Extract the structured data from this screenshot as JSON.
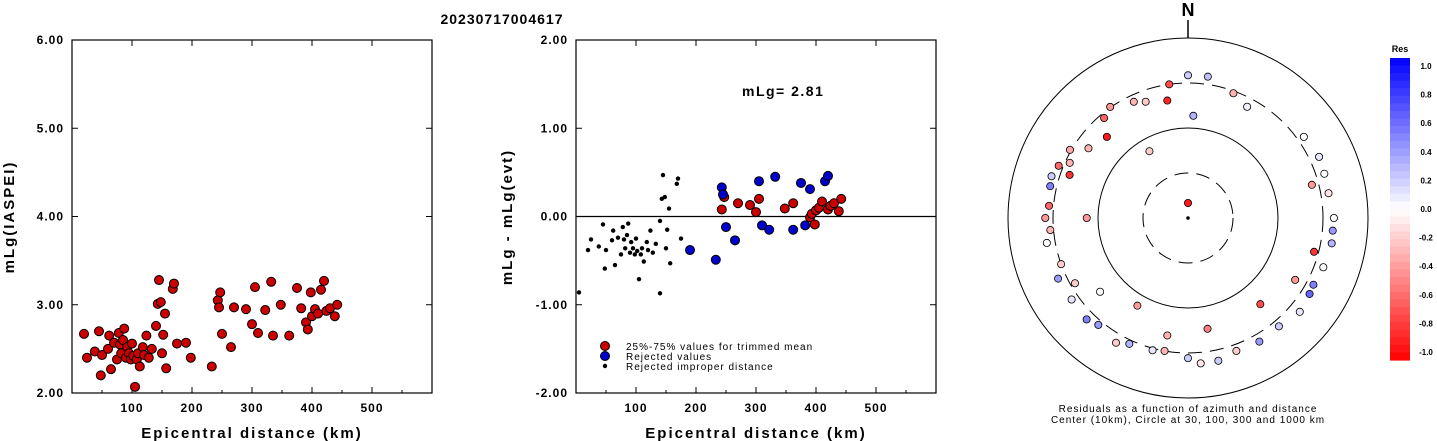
{
  "chart_data": [
    {
      "type": "scatter",
      "title": "20230717004617",
      "xlabel": "Epicentral distance (km)",
      "ylabel": "mLg(IASPEI)",
      "xlim": [
        0,
        600
      ],
      "ylim": [
        2.0,
        6.0
      ],
      "xticks": [
        "100",
        "200",
        "300",
        "400",
        "500"
      ],
      "yticks": [
        "2.00",
        "3.00",
        "4.00",
        "5.00",
        "6.00"
      ],
      "series": [
        {
          "color": "#cc0000",
          "points": [
            [
              20,
              2.67
            ],
            [
              25,
              2.4
            ],
            [
              38,
              2.47
            ],
            [
              45,
              2.7
            ],
            [
              48,
              2.2
            ],
            [
              50,
              2.43
            ],
            [
              60,
              2.5
            ],
            [
              62,
              2.65
            ],
            [
              65,
              2.27
            ],
            [
              70,
              2.57
            ],
            [
              75,
              2.38
            ],
            [
              78,
              2.68
            ],
            [
              80,
              2.55
            ],
            [
              82,
              2.45
            ],
            [
              85,
              2.6
            ],
            [
              87,
              2.73
            ],
            [
              90,
              2.4
            ],
            [
              92,
              2.52
            ],
            [
              95,
              2.45
            ],
            [
              98,
              2.38
            ],
            [
              100,
              2.56
            ],
            [
              102,
              2.42
            ],
            [
              105,
              2.07
            ],
            [
              108,
              2.38
            ],
            [
              110,
              2.45
            ],
            [
              113,
              2.3
            ],
            [
              118,
              2.52
            ],
            [
              120,
              2.43
            ],
            [
              124,
              2.65
            ],
            [
              128,
              2.4
            ],
            [
              133,
              2.5
            ],
            [
              140,
              2.76
            ],
            [
              143,
              3.01
            ],
            [
              145,
              3.28
            ],
            [
              148,
              3.03
            ],
            [
              150,
              2.45
            ],
            [
              152,
              2.66
            ],
            [
              155,
              2.9
            ],
            [
              157,
              2.28
            ],
            [
              168,
              3.18
            ],
            [
              170,
              3.24
            ],
            [
              175,
              2.56
            ],
            [
              190,
              2.57
            ],
            [
              198,
              2.4
            ],
            [
              233,
              2.3
            ],
            [
              243,
              3.05
            ],
            [
              245,
              2.97
            ],
            [
              247,
              3.14
            ],
            [
              250,
              2.67
            ],
            [
              265,
              2.52
            ],
            [
              270,
              2.97
            ],
            [
              290,
              2.95
            ],
            [
              300,
              2.78
            ],
            [
              305,
              3.2
            ],
            [
              310,
              2.68
            ],
            [
              322,
              2.94
            ],
            [
              332,
              3.26
            ],
            [
              335,
              2.65
            ],
            [
              348,
              3.0
            ],
            [
              362,
              2.65
            ],
            [
              375,
              3.19
            ],
            [
              382,
              2.96
            ],
            [
              390,
              2.8
            ],
            [
              393,
              2.72
            ],
            [
              398,
              3.14
            ],
            [
              400,
              2.87
            ],
            [
              405,
              2.95
            ],
            [
              410,
              2.9
            ],
            [
              415,
              3.17
            ],
            [
              420,
              3.27
            ],
            [
              424,
              2.93
            ],
            [
              430,
              2.96
            ],
            [
              438,
              2.87
            ],
            [
              442,
              3.0
            ]
          ]
        }
      ]
    },
    {
      "type": "scatter",
      "xlabel": "Epicentral distance (km)",
      "ylabel": "mLg - mLg(evt)",
      "xlim": [
        0,
        600
      ],
      "ylim": [
        -2.0,
        2.0
      ],
      "xticks": [
        "100",
        "200",
        "300",
        "400",
        "500"
      ],
      "yticks": [
        "-2.00",
        "-1.00",
        "0.00",
        "1.00",
        "2.00"
      ],
      "annotation": "mLg= 2.81",
      "legend": [
        {
          "label": "25%-75% values for trimmed mean",
          "color": "#cc0000"
        },
        {
          "label": "Rejected values",
          "color": "#0000cc"
        },
        {
          "label": "Rejected improper distance",
          "color": "#000000"
        }
      ],
      "series": [
        {
          "name": "25%-75% values for trimmed mean",
          "color": "#cc0000",
          "points": [
            [
              243,
              0.08
            ],
            [
              247,
              0.22
            ],
            [
              270,
              0.15
            ],
            [
              290,
              0.13
            ],
            [
              300,
              0.05
            ],
            [
              305,
              0.2
            ],
            [
              348,
              0.09
            ],
            [
              362,
              0.15
            ],
            [
              390,
              -0.01
            ],
            [
              393,
              0.03
            ],
            [
              398,
              -0.09
            ],
            [
              400,
              0.07
            ],
            [
              405,
              0.1
            ],
            [
              410,
              0.17
            ],
            [
              420,
              0.08
            ],
            [
              424,
              0.12
            ],
            [
              430,
              0.15
            ],
            [
              438,
              0.06
            ],
            [
              442,
              0.2
            ]
          ]
        },
        {
          "name": "Rejected values",
          "color": "#0000cc",
          "points": [
            [
              190,
              -0.38
            ],
            [
              233,
              -0.49
            ],
            [
              243,
              0.33
            ],
            [
              245,
              0.25
            ],
            [
              250,
              -0.12
            ],
            [
              265,
              -0.27
            ],
            [
              305,
              0.4
            ],
            [
              310,
              -0.1
            ],
            [
              322,
              -0.15
            ],
            [
              332,
              0.45
            ],
            [
              362,
              -0.15
            ],
            [
              375,
              0.38
            ],
            [
              382,
              -0.1
            ],
            [
              390,
              0.31
            ],
            [
              415,
              0.4
            ],
            [
              420,
              0.46
            ]
          ]
        },
        {
          "name": "Rejected improper distance",
          "color": "#000000",
          "points": [
            [
              5,
              -0.86
            ],
            [
              20,
              -0.38
            ],
            [
              25,
              -0.26
            ],
            [
              38,
              -0.34
            ],
            [
              45,
              -0.09
            ],
            [
              48,
              -0.59
            ],
            [
              50,
              -0.38
            ],
            [
              60,
              -0.27
            ],
            [
              62,
              -0.16
            ],
            [
              65,
              -0.55
            ],
            [
              70,
              -0.24
            ],
            [
              75,
              -0.43
            ],
            [
              78,
              -0.12
            ],
            [
              80,
              -0.26
            ],
            [
              82,
              -0.36
            ],
            [
              85,
              -0.21
            ],
            [
              87,
              -0.08
            ],
            [
              90,
              -0.41
            ],
            [
              92,
              -0.29
            ],
            [
              95,
              -0.36
            ],
            [
              98,
              -0.43
            ],
            [
              100,
              -0.25
            ],
            [
              102,
              -0.39
            ],
            [
              105,
              -0.71
            ],
            [
              108,
              -0.43
            ],
            [
              110,
              -0.36
            ],
            [
              113,
              -0.51
            ],
            [
              118,
              -0.29
            ],
            [
              120,
              -0.38
            ],
            [
              124,
              -0.16
            ],
            [
              128,
              -0.41
            ],
            [
              133,
              -0.31
            ],
            [
              140,
              -0.05
            ],
            [
              143,
              0.2
            ],
            [
              145,
              0.47
            ],
            [
              148,
              0.22
            ],
            [
              150,
              -0.36
            ],
            [
              152,
              -0.15
            ],
            [
              155,
              0.09
            ],
            [
              157,
              -0.53
            ],
            [
              168,
              0.37
            ],
            [
              170,
              0.43
            ],
            [
              175,
              -0.25
            ],
            [
              140,
              -0.87
            ]
          ]
        }
      ]
    },
    {
      "type": "polar-scatter",
      "north_label": "N",
      "caption_line1": "Residuals as a function of azimuth and distance",
      "caption_line2": "Center (10km), Circle at 30, 100, 300 and 1000 km",
      "colorbar_title": "Res",
      "colorbar_ticks": [
        "1.0",
        "0.8",
        "0.6",
        "0.4",
        "0.2",
        "0.0",
        "-0.2",
        "-0.4",
        "-0.6",
        "-0.8",
        "-1.0"
      ],
      "points": [
        {
          "az": 3,
          "dist": 155,
          "res": 0.3
        },
        {
          "az": 8,
          "dist": 420,
          "res": 0.25
        },
        {
          "az": 0,
          "dist": 420,
          "res": 0.2
        },
        {
          "az": 340,
          "dist": 250,
          "res": -0.2
        },
        {
          "az": 352,
          "dist": 300,
          "res": -0.7
        },
        {
          "az": 20,
          "dist": 290,
          "res": -0.3
        },
        {
          "az": 28,
          "dist": 260,
          "res": 0.05
        },
        {
          "az": 350,
          "dist": 230,
          "res": -0.85
        },
        {
          "az": 335,
          "dist": 270,
          "res": -0.3
        },
        {
          "az": 325,
          "dist": 310,
          "res": -0.4
        },
        {
          "az": 320,
          "dist": 280,
          "res": -0.6
        },
        {
          "az": 315,
          "dist": 210,
          "res": -0.9
        },
        {
          "az": 305,
          "dist": 240,
          "res": -0.3
        },
        {
          "az": 300,
          "dist": 320,
          "res": -0.35
        },
        {
          "az": 295,
          "dist": 280,
          "res": -0.3
        },
        {
          "az": 290,
          "dist": 260,
          "res": -0.8
        },
        {
          "az": 292,
          "dist": 370,
          "res": -0.6
        },
        {
          "az": 287,
          "dist": 420,
          "res": 0.2
        },
        {
          "az": 283,
          "dist": 400,
          "res": 0.5
        },
        {
          "az": 275,
          "dist": 370,
          "res": -0.6
        },
        {
          "az": 270,
          "dist": 420,
          "res": -0.4
        },
        {
          "az": 260,
          "dist": 430,
          "res": 0.0
        },
        {
          "az": 265,
          "dist": 350,
          "res": -0.3
        },
        {
          "az": 250,
          "dist": 300,
          "res": -0.2
        },
        {
          "az": 240,
          "dist": 280,
          "res": -0.2
        },
        {
          "az": 245,
          "dist": 430,
          "res": 0.4
        },
        {
          "az": 235,
          "dist": 410,
          "res": 0.1
        },
        {
          "az": 225,
          "dist": 430,
          "res": 0.5
        },
        {
          "az": 220,
          "dist": 370,
          "res": 0.4
        },
        {
          "az": 210,
          "dist": 440,
          "res": -0.2
        },
        {
          "az": 205,
          "dist": 360,
          "res": 0.3
        },
        {
          "az": 195,
          "dist": 330,
          "res": 0.1
        },
        {
          "az": 190,
          "dist": 300,
          "res": -0.3
        },
        {
          "az": 180,
          "dist": 380,
          "res": 0.2
        },
        {
          "az": 175,
          "dist": 470,
          "res": -0.1
        },
        {
          "az": 168,
          "dist": 470,
          "res": 0.2
        },
        {
          "az": 160,
          "dist": 400,
          "res": -0.2
        },
        {
          "az": 150,
          "dist": 420,
          "res": 0.4
        },
        {
          "az": 140,
          "dist": 400,
          "res": 0.2
        },
        {
          "az": 130,
          "dist": 470,
          "res": 0.1
        },
        {
          "az": 122,
          "dist": 430,
          "res": 0.6
        },
        {
          "az": 118,
          "dist": 410,
          "res": 0.5
        },
        {
          "az": 110,
          "dist": 440,
          "res": 0.0
        },
        {
          "az": 100,
          "dist": 470,
          "res": 0.3
        },
        {
          "az": 95,
          "dist": 460,
          "res": 0.4
        },
        {
          "az": 90,
          "dist": 470,
          "res": 0.0
        },
        {
          "az": 80,
          "dist": 420,
          "res": -0.1
        },
        {
          "az": 72,
          "dist": 430,
          "res": 0.0
        },
        {
          "az": 65,
          "dist": 450,
          "res": 0.1
        },
        {
          "az": 55,
          "dist": 400,
          "res": 0.0
        },
        {
          "az": 75,
          "dist": 270,
          "res": -0.4
        },
        {
          "az": 105,
          "dist": 280,
          "res": -0.8
        },
        {
          "az": 140,
          "dist": 200,
          "res": -0.7
        },
        {
          "az": 120,
          "dist": 250,
          "res": -0.4
        },
        {
          "az": 170,
          "dist": 200,
          "res": -0.5
        },
        {
          "az": 190,
          "dist": 230,
          "res": -0.3
        },
        {
          "az": 210,
          "dist": 150,
          "res": -0.4
        },
        {
          "az": 230,
          "dist": 210,
          "res": 0.0
        },
        {
          "az": 270,
          "dist": 150,
          "res": -0.4
        },
        {
          "az": 330,
          "dist": 80,
          "res": -0.2
        },
        {
          "az": 0,
          "dist": 10,
          "res": -0.9
        }
      ]
    }
  ]
}
